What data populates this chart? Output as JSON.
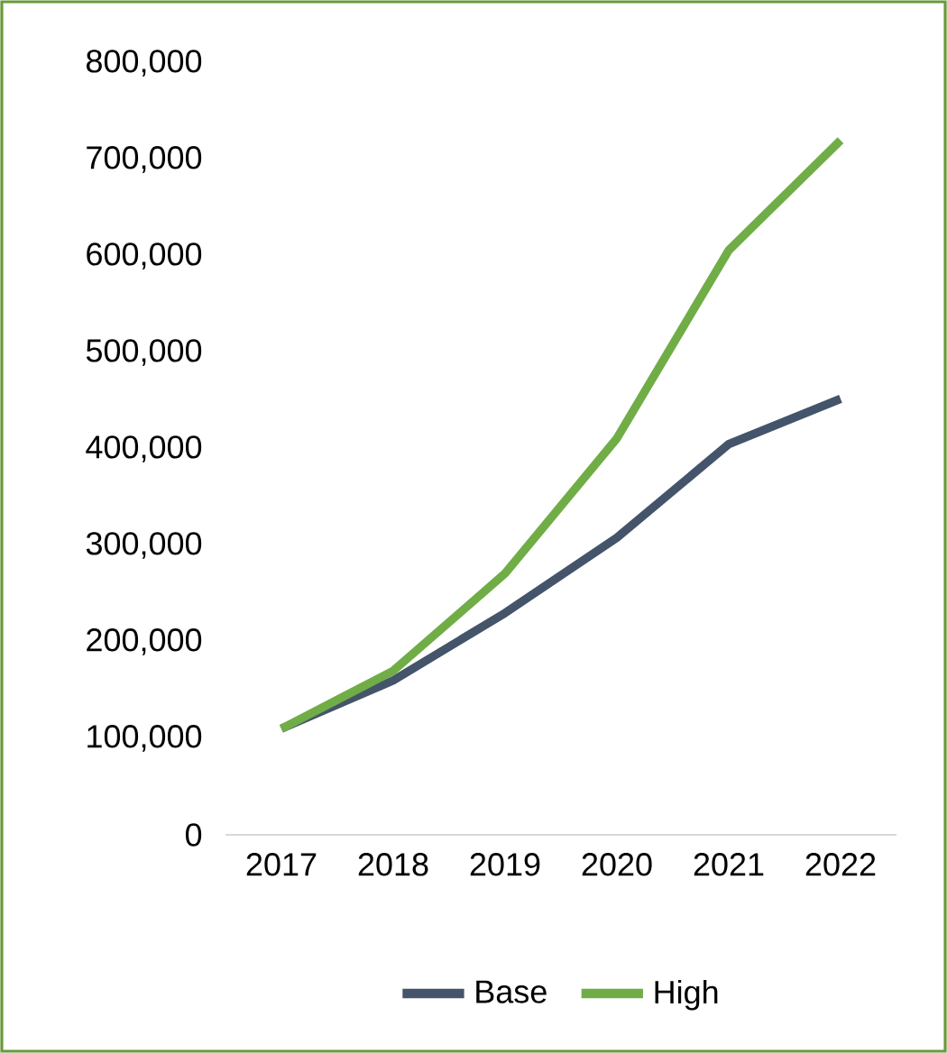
{
  "chart_data": {
    "type": "line",
    "categories": [
      "2017",
      "2018",
      "2019",
      "2020",
      "2021",
      "2022"
    ],
    "series": [
      {
        "name": "Base",
        "color": "#44546a",
        "values": [
          110000,
          160000,
          230000,
          308000,
          405000,
          452000
        ]
      },
      {
        "name": "High",
        "color": "#70ad47",
        "values": [
          110000,
          170000,
          271000,
          411000,
          606000,
          720000
        ]
      }
    ],
    "ylim": [
      0,
      800000
    ],
    "yticks": [
      0,
      {
        "value": 100000,
        "label": "100,000"
      },
      {
        "value": 200000,
        "label": "200,000"
      },
      {
        "value": 300000,
        "label": "300,000"
      },
      {
        "value": 400000,
        "label": "400,000"
      },
      {
        "value": 500000,
        "label": "500,000"
      },
      {
        "value": 600000,
        "label": "600,000"
      },
      {
        "value": 700000,
        "label": "700,000"
      },
      {
        "value": 800000,
        "label": "800,000"
      }
    ],
    "grid": false,
    "legend": "bottom",
    "marker": "none",
    "line_style": "solid"
  }
}
